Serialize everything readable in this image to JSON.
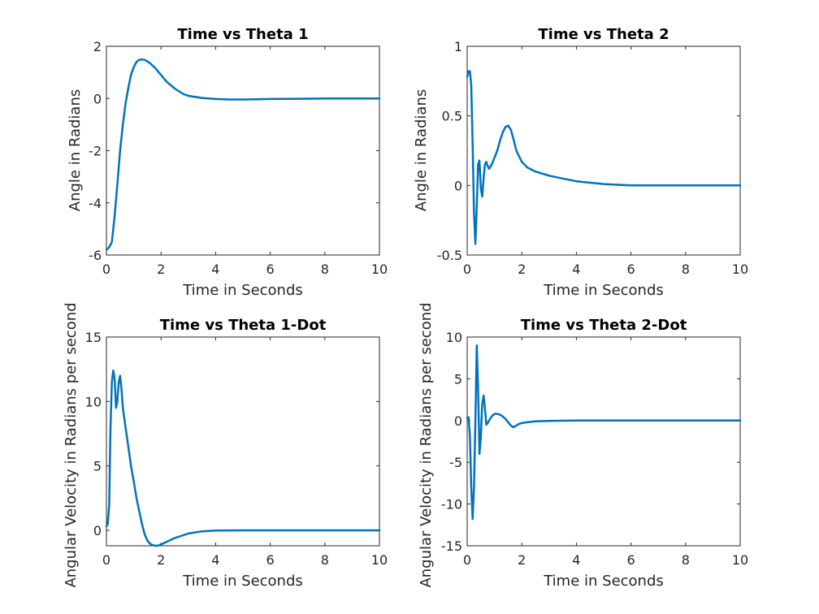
{
  "chart_data": [
    {
      "type": "line",
      "title": "Time vs Theta 1",
      "xlabel": "Time in Seconds",
      "ylabel": "Angle in Radians",
      "xlim": [
        0,
        10
      ],
      "ylim": [
        -6,
        2
      ],
      "xticks": [
        0,
        2,
        4,
        6,
        8,
        10
      ],
      "yticks": [
        -6,
        -4,
        -2,
        0,
        2
      ],
      "grid": false,
      "color": "#0072BD",
      "series": [
        {
          "x": [
            0,
            0.1,
            0.2,
            0.3,
            0.4,
            0.5,
            0.6,
            0.7,
            0.8,
            0.9,
            1.0,
            1.1,
            1.2,
            1.3,
            1.4,
            1.5,
            1.6,
            1.8,
            2.0,
            2.2,
            2.5,
            2.8,
            3.0,
            3.5,
            4.0,
            4.5,
            5.0,
            5.5,
            6.0,
            7.0,
            8.0,
            9.0,
            10.0
          ],
          "y": [
            -5.8,
            -5.7,
            -5.5,
            -4.5,
            -3.3,
            -2.0,
            -1.0,
            -0.2,
            0.4,
            0.9,
            1.2,
            1.4,
            1.48,
            1.5,
            1.48,
            1.42,
            1.35,
            1.15,
            0.9,
            0.65,
            0.38,
            0.18,
            0.1,
            0.02,
            -0.02,
            -0.04,
            -0.04,
            -0.03,
            -0.02,
            -0.01,
            0,
            0,
            0
          ]
        }
      ]
    },
    {
      "type": "line",
      "title": "Time vs Theta 2",
      "xlabel": "Time in Seconds",
      "ylabel": "Angle in Radians",
      "xlim": [
        0,
        10
      ],
      "ylim": [
        -0.5,
        1
      ],
      "xticks": [
        0,
        2,
        4,
        6,
        8,
        10
      ],
      "yticks": [
        -0.5,
        0,
        0.5,
        1
      ],
      "grid": false,
      "color": "#0072BD",
      "series": [
        {
          "x": [
            0,
            0.05,
            0.1,
            0.15,
            0.2,
            0.25,
            0.3,
            0.35,
            0.4,
            0.45,
            0.5,
            0.55,
            0.6,
            0.65,
            0.7,
            0.75,
            0.8,
            0.9,
            1.0,
            1.1,
            1.2,
            1.3,
            1.4,
            1.5,
            1.6,
            1.7,
            1.8,
            2.0,
            2.2,
            2.5,
            3.0,
            3.5,
            4.0,
            5.0,
            6.0,
            7.0,
            8.0,
            9.0,
            10.0
          ],
          "y": [
            0.78,
            0.82,
            0.82,
            0.72,
            0.3,
            -0.2,
            -0.42,
            -0.15,
            0.15,
            0.18,
            -0.02,
            -0.08,
            0.05,
            0.15,
            0.17,
            0.14,
            0.12,
            0.15,
            0.2,
            0.25,
            0.32,
            0.38,
            0.42,
            0.43,
            0.4,
            0.33,
            0.25,
            0.17,
            0.13,
            0.1,
            0.07,
            0.05,
            0.03,
            0.01,
            0,
            0,
            0,
            0,
            0
          ]
        }
      ]
    },
    {
      "type": "line",
      "title": "Time vs Theta 1-Dot",
      "xlabel": "Time in Seconds",
      "ylabel": "Angular Velocity in Radians per second",
      "xlim": [
        0,
        10
      ],
      "ylim": [
        -1.2,
        15
      ],
      "xticks": [
        0,
        2,
        4,
        6,
        8,
        10
      ],
      "yticks": [
        0,
        5,
        10,
        15
      ],
      "grid": false,
      "color": "#0072BD",
      "series": [
        {
          "x": [
            0,
            0.05,
            0.1,
            0.15,
            0.2,
            0.25,
            0.3,
            0.35,
            0.4,
            0.45,
            0.5,
            0.55,
            0.6,
            0.7,
            0.8,
            0.9,
            1.0,
            1.1,
            1.2,
            1.3,
            1.4,
            1.5,
            1.6,
            1.7,
            1.8,
            1.9,
            2.0,
            2.2,
            2.5,
            3.0,
            3.5,
            4.0,
            5.0,
            6.0,
            7.0,
            8.0,
            9.0,
            10.0
          ],
          "y": [
            0.3,
            0.5,
            2.0,
            8.0,
            11.5,
            12.4,
            11.8,
            9.5,
            10.0,
            11.5,
            12.0,
            11.0,
            9.5,
            8.0,
            6.5,
            5.0,
            3.8,
            2.5,
            1.5,
            0.5,
            -0.3,
            -0.8,
            -1.05,
            -1.15,
            -1.2,
            -1.18,
            -1.1,
            -0.9,
            -0.6,
            -0.25,
            -0.08,
            -0.02,
            0,
            0,
            0,
            0,
            0,
            0
          ]
        }
      ]
    },
    {
      "type": "line",
      "title": "Time vs Theta 2-Dot",
      "xlabel": "Time in Seconds",
      "ylabel": "Angular Velocity in Radians per second",
      "xlim": [
        0,
        10
      ],
      "ylim": [
        -15,
        10
      ],
      "xticks": [
        0,
        2,
        4,
        6,
        8,
        10
      ],
      "yticks": [
        -15,
        -10,
        -5,
        0,
        5,
        10
      ],
      "grid": false,
      "color": "#0072BD",
      "series": [
        {
          "x": [
            0,
            0.05,
            0.1,
            0.15,
            0.2,
            0.25,
            0.3,
            0.35,
            0.4,
            0.45,
            0.5,
            0.55,
            0.6,
            0.65,
            0.7,
            0.75,
            0.8,
            0.9,
            1.0,
            1.1,
            1.2,
            1.3,
            1.4,
            1.5,
            1.6,
            1.7,
            1.8,
            1.9,
            2.0,
            2.2,
            2.5,
            3.0,
            4.0,
            5.0,
            6.0,
            7.0,
            8.0,
            9.0,
            10.0
          ],
          "y": [
            0.3,
            0.4,
            -2.0,
            -8.0,
            -11.8,
            -8.0,
            0.0,
            9.0,
            4.0,
            -4.0,
            -2.0,
            2.0,
            3.0,
            1.5,
            -0.5,
            -0.3,
            0.0,
            0.5,
            0.8,
            0.8,
            0.7,
            0.5,
            0.2,
            -0.2,
            -0.6,
            -0.8,
            -0.6,
            -0.4,
            -0.3,
            -0.2,
            -0.1,
            -0.05,
            0,
            0,
            0,
            0,
            0,
            0,
            0
          ]
        }
      ]
    }
  ]
}
